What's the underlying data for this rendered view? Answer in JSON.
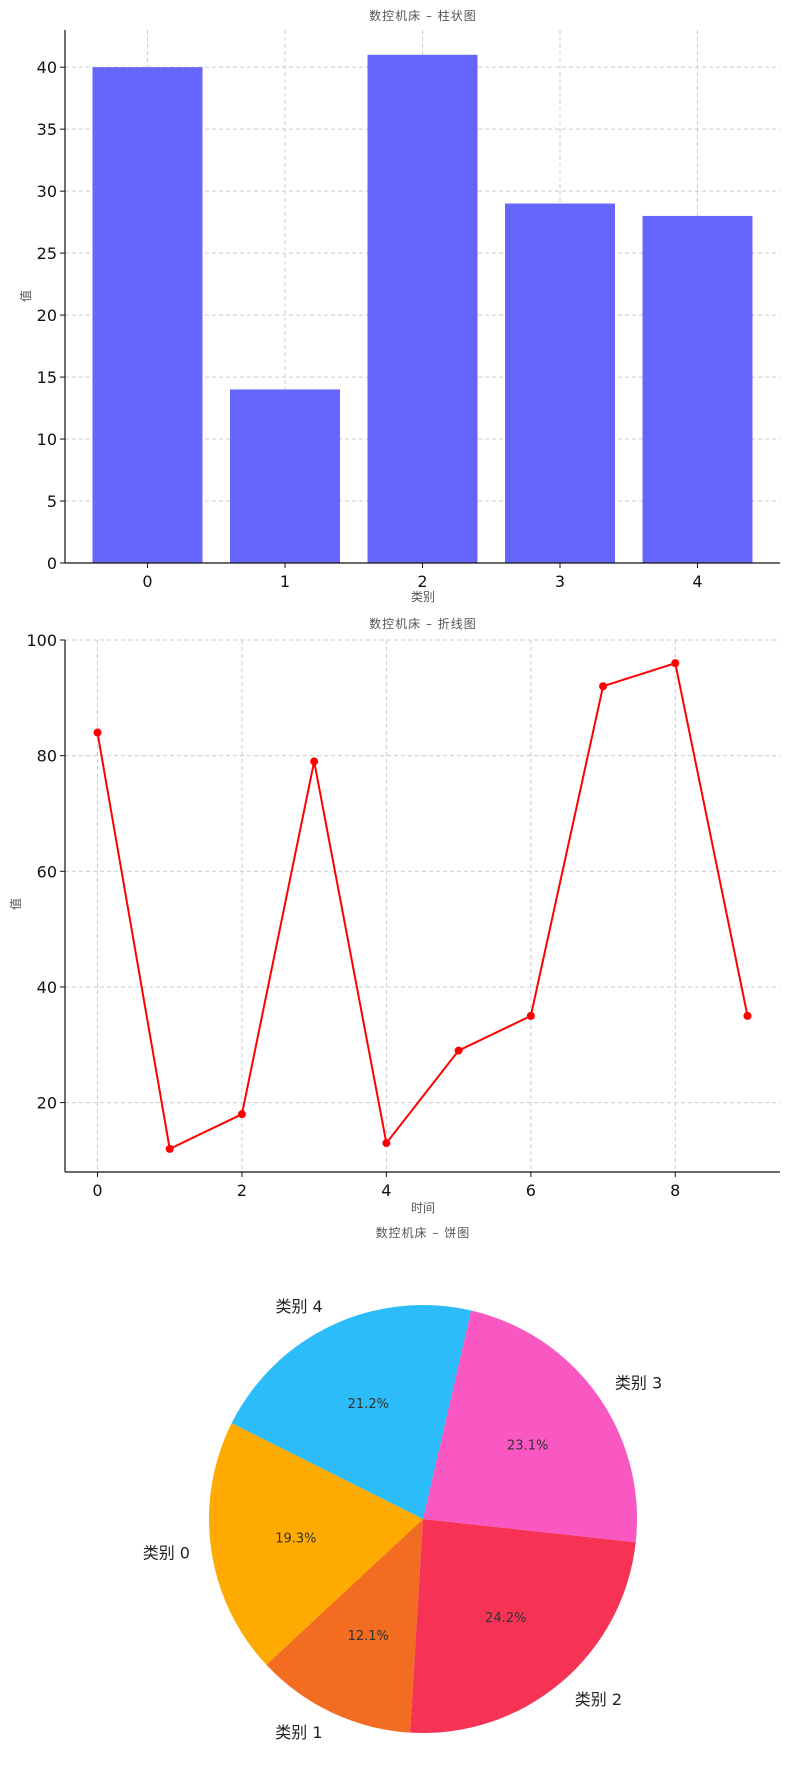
{
  "chart_data": [
    {
      "type": "bar",
      "title": "数控机床 – 柱状图",
      "xlabel": "类别",
      "ylabel": "值",
      "categories": [
        "0",
        "1",
        "2",
        "3",
        "4"
      ],
      "values": [
        40,
        14,
        41,
        29,
        28
      ],
      "ylim": [
        0,
        43
      ],
      "yticks": [
        0,
        5,
        10,
        15,
        20,
        25,
        30,
        35,
        40
      ],
      "grid": true,
      "color": "#6666ff"
    },
    {
      "type": "line",
      "title": "数控机床 – 折线图",
      "xlabel": "时间",
      "ylabel": "值",
      "x": [
        0,
        1,
        2,
        3,
        4,
        5,
        6,
        7,
        8,
        9
      ],
      "y": [
        84,
        12,
        18,
        79,
        13,
        29,
        35,
        92,
        96,
        35
      ],
      "xlim": [
        -0.45,
        9.45
      ],
      "ylim": [
        8,
        100
      ],
      "xticks": [
        0,
        2,
        4,
        6,
        8
      ],
      "yticks": [
        20,
        40,
        60,
        80,
        100
      ],
      "grid": true,
      "color": "#ff0000"
    },
    {
      "type": "pie",
      "title": "数控机床 – 饼图",
      "labels": [
        "类别 0",
        "类别 1",
        "类别 2",
        "类别 3",
        "类别 4"
      ],
      "values": [
        19.3,
        12.1,
        24.2,
        23.1,
        21.2
      ],
      "percent_labels": [
        "19.3%",
        "12.1%",
        "24.2%",
        "23.1%",
        "21.2%"
      ],
      "colors": [
        "#ffaa00",
        "#f26c22",
        "#f63355",
        "#f957c2",
        "#2bbcf9"
      ]
    }
  ]
}
